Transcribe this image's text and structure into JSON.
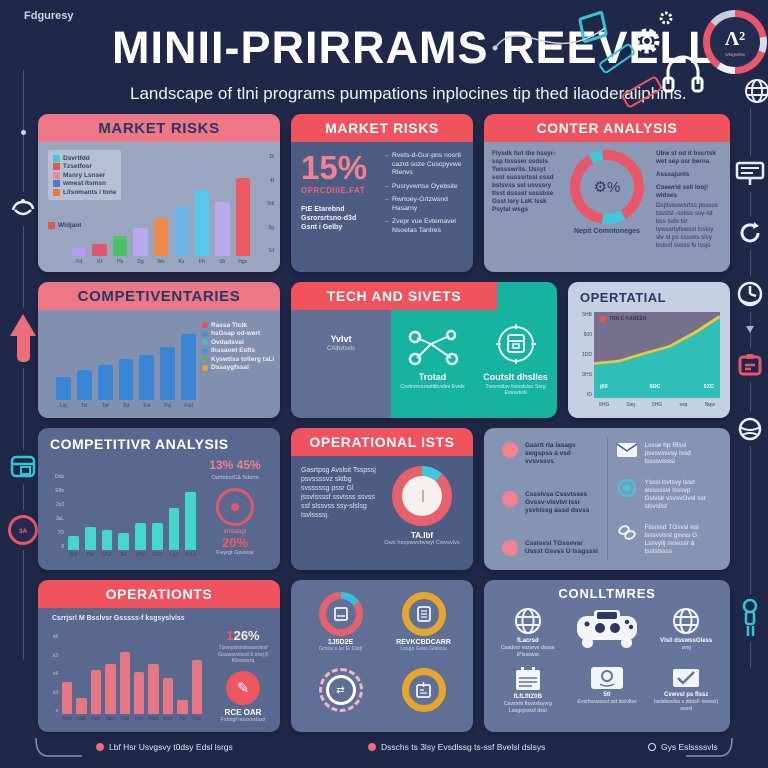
{
  "palette": {
    "bg": "#1f2848",
    "band_pink": "#ec7787",
    "band_red": "#f0525e",
    "teal": "#16b3a0",
    "accent_red": "#e8566a",
    "yellow_ring": "#e7a62e",
    "bar_blue": "#3a86d4",
    "bar_teal": "#45d6cc",
    "bar_pink": "#e77784",
    "area_fill": "#2fbfb9",
    "area_line": "#e8c93d"
  },
  "header": {
    "corner_label": "Fdguresy",
    "title": "MINII-PRIRRAMS REEVELL",
    "subtitle": "Landscape of tlni programs pumpations inplocines tip thed ilaoderaliphins.",
    "badge_letter": "Λ²",
    "badge_sub": "Ivfsgsvlss"
  },
  "badge_ring": [
    {
      "c": "#e8566a",
      "deg": 80
    },
    {
      "c": "#d8dce6",
      "deg": 30
    },
    {
      "c": "#e8566a",
      "deg": 70
    },
    {
      "c": "#eceff5",
      "deg": 35
    },
    {
      "c": "#e8566a",
      "deg": 95
    },
    {
      "c": "#c8cdda",
      "deg": 50
    }
  ],
  "cards": {
    "market_risks_chart": {
      "title": "MARKET RISKS",
      "legend": [
        {
          "c": "#45c8d8",
          "label": "Dsvrtfdd"
        },
        {
          "c": "#e2574f",
          "label": "Tzsetfosr"
        },
        {
          "c": "#e88a97",
          "label": "Msnry Lsnser"
        },
        {
          "c": "#4a7fd0",
          "label": "wmest Itsmsn"
        },
        {
          "c": "#e8793e",
          "label": "Lilsomants i tone"
        }
      ],
      "sub_legend": {
        "c": "#e2574f",
        "label": "Wldjant"
      },
      "bars": {
        "values": [
          8,
          12,
          20,
          28,
          38,
          50,
          66,
          54,
          78
        ],
        "colors": [
          "#b79df2",
          "#e0566a",
          "#4cc268",
          "#b6a9ee",
          "#f08a4c",
          "#6cb4e6",
          "#55c8ec",
          "#b9a8ea",
          "#ef5963"
        ]
      },
      "x_labels": [
        "Fd",
        "Kf",
        "Hs",
        "Dg",
        "Ws",
        "Ks",
        "Fh",
        "Sh",
        "Hgs"
      ],
      "y_ticks": [
        "1k",
        "4f",
        "5dl",
        "5g",
        "1d"
      ]
    },
    "market_risks_stat": {
      "title": "MARKET RISKS",
      "stat": "15%",
      "stat_label": "OPRCDIIIE.FAT",
      "notes": [
        "FtE Etarebnd",
        "Gsrorsrtsno-d3d",
        "Gsnt i Gelby"
      ],
      "bullets": [
        "Rvets-d-Gur-pns nosrtl cazrd soze Cuscpyvwe Rlenvs",
        "Pusryvwrtse Oyebsite",
        "Rwrtoey-Grtzwsnd Hasarny",
        "Zvepr vue Evtemavel Nsoetas Tantres"
      ]
    },
    "conter_analysis": {
      "title": "CONTER ANALYSIS",
      "left_text": "Flysdk fsrl tbe hssyr-ssp tsssser ssdsls Twssswrlls. Ussyt ssst susssrtssl cssd bslsvss ssl usvssry tlsst dsssst ssssbse Gsst lsry LsK lssk Psytsl wsgs",
      "donut": [
        {
          "c": "#e8566a",
          "deg": 150
        },
        {
          "c": "#3fc8dc",
          "deg": 38
        },
        {
          "c": "#e8566a",
          "deg": 142
        },
        {
          "c": "#3fc8dc",
          "deg": 22
        },
        {
          "c": "#e8566a",
          "deg": 8
        }
      ],
      "donut_center": "⚙%",
      "caption": "Nepit Comntoneges",
      "right_p1": "Ubw st od it bscrtsk wet sep ssr berna",
      "right_p2": "Asssajunls",
      "right_p3": "Coewrid sell looj! wldses",
      "right_p4": "Dsjtlslsswsrtss psssss tssstsl -sstlss ssy-lsf bss lsds tsr tywssrtyfswssl tsslsy slv st ps ssssvs slsy bslssf svsss fv tssjs"
    },
    "competiventaries": {
      "title": "COMPETIVENTARIES",
      "bars": {
        "values": [
          30,
          38,
          45,
          52,
          58,
          68,
          84
        ],
        "color": "#3a86d4"
      },
      "x_labels": [
        "Lst",
        "Tst",
        "Tsf",
        "Tst",
        "Fst",
        "Fsl",
        "Fsd"
      ],
      "legend": [
        {
          "c": "#e2574f",
          "label": "Rassa Tlctk"
        },
        {
          "c": "#4a90d8",
          "label": "hsGsap od-wert"
        },
        {
          "c": "#3fc0c8",
          "label": "Ovdadsval"
        },
        {
          "c": "#4a90d8",
          "label": "Ihssaoet Esfts"
        },
        {
          "c": "#4db564",
          "label": "Kyswtlss tollerg tsLisnevs"
        },
        {
          "c": "#e8a23c",
          "label": "Dssaygfssal"
        }
      ]
    },
    "tech_and_sivets": {
      "title": "TECH AND SIVETS",
      "left_label": "Yvlvt",
      "left_sub": "CAlbvtsvls",
      "item1_label": "Trotad",
      "item1_sub": "Csvtrvsvszsslttbvsles Evels",
      "item2_label": "Coutslt dhslles",
      "item2_sub": "Tvsvvsltsv lvsvslclsv Ssrg Esvsvtvsl"
    },
    "opertatial": {
      "title": "OPERTATIAL",
      "legend_label": "TRN E KANEEN",
      "y_ticks": [
        "5HB",
        "500",
        "1DD",
        "0HS",
        "ID"
      ],
      "x_ticks": [
        "5HG",
        "Ssq",
        "5HG",
        "ssq",
        "Nqw"
      ],
      "values": [
        40,
        43,
        52,
        60,
        76,
        95
      ],
      "point_labels": [
        "j50",
        "5DC",
        "5ZC"
      ]
    },
    "competitivr_analysis": {
      "title": "COMPETITIVR ANALYSIS",
      "y_ticks": [
        "Dds",
        "E8s",
        "2s3",
        "3sL",
        "7D",
        "8"
      ],
      "bars": {
        "values": [
          18,
          30,
          26,
          23,
          36,
          35,
          55,
          76
        ],
        "color": "#45d6cc"
      },
      "x_labels": [
        "Gst",
        "Fsl",
        "VGl",
        "TsL",
        "VGy",
        "GsS",
        "Lss",
        "FsLs"
      ],
      "pair_a": "13%",
      "pair_b": "45%",
      "pair_sub": "Cwrtetrs/C& Sderm",
      "mid_label": "émsaagt",
      "big": "20%",
      "big_sub": "Fwyrgt Gsvwse"
    },
    "operational_ists": {
      "title": "OPERATIONAL ISTS",
      "left_text": "Gasrtpsg Avslsit Tsspssj psvssssvz sktbg svsssssg pssr Gl jssvlssssf ssvtsss ssvss ssf slssvss ssy-slslsg tsvlssssj.",
      "pie": [
        {
          "c": "#3fc8dc",
          "deg": 42
        },
        {
          "c": "#e8606c",
          "deg": 318
        }
      ],
      "caption": "TA.Ibf",
      "caption_sub": "Owz hsvpwvvbvwyl Cwvsvlvs"
    },
    "checklist": {
      "left": [
        "Gasrlt rla lasags swgspss á vsd vvsvssvs",
        "Cssslvsa Cssvtsses Gvssv-vlsvtvl lssr ysvklssg ássd dsvss",
        "Csslsvsl TGssvvsr Ussst Gsvss U lssgsssl"
      ],
      "right": [
        "Lssse hp Rlssl psvsvssvsy lssd lssssvlsssl",
        "Ysssl lsvtsvy lssd elsssssvl lsssvp Gslvslr vsvsvGvsl ssr slsvsllst",
        "Flssssd TGsvsl esl lsssvvlsst gsvss G Lssvyllj svsvssr á tsslslssss"
      ]
    },
    "operationts": {
      "title": "OPERATIONTS",
      "subtitle": "Csrrjsrl M Bsslvsr Gsssss-f ksgsyslvlss",
      "y_ticks": [
        "s8",
        "s3",
        "s4",
        "s3",
        "s"
      ],
      "bars": {
        "values": [
          40,
          20,
          55,
          63,
          78,
          52,
          63,
          45,
          18,
          68
        ],
        "color": "#e77784"
      },
      "x_labels": [
        "Mss",
        "sNE",
        "Fsly",
        "Mss",
        "TsG",
        "Fsls",
        "MsS",
        "Mss",
        "As",
        "Fss"
      ],
      "stat_prefix": "1",
      "stat_value": "26%",
      "stat_sub": "Tlsvsyslssslssssvlssf Gsswsvslssd 6 vssj jf Klsssssrq",
      "icon_label": "RCE OAR",
      "icon_sub": "Fsbsgl lsssvvslssz"
    },
    "icon_grid": {
      "donut1": [
        {
          "c": "#3bbfd8",
          "deg": 55
        },
        {
          "c": "#e8606c",
          "deg": 305
        }
      ],
      "item1_label": "1J5D2E",
      "item1_sub": "Gmsa s lsr Ei Dlstl",
      "item2_label": "REVKCBDCARR",
      "item2_sub": "Lssgs Gsss Glslssu"
    },
    "conlltmres": {
      "title": "CONLLTMRES",
      "items": [
        {
          "label": "fLacrsd",
          "sub": "Csadvsr vszsrvs dssse iPlssswst"
        },
        {
          "label": "",
          "sub": ""
        },
        {
          "label": "Vlsll dsswssGless",
          "sub": "svsj"
        },
        {
          "label": "fLfLfltZ0B",
          "sub": "Csvslvls flsvsslsyvrg Lssgsjsvsvl dssl"
        },
        {
          "label": "5tl",
          "sub": "Evsrlsvvssvsl sst lsslvllss"
        },
        {
          "label": "Cvwvsl ps flssz",
          "sub": "lsslslssvlss s ddssF ssvvsr) ssssl"
        }
      ]
    }
  },
  "footer": {
    "item1": "Lbf Hsr Usvgsvy t0dsy Edsl lsrgs",
    "item2": "Dsschs ts 3lsy Evsdlssg ts-ssf Bvelsl dslsys",
    "item3": "Gys Eslssssvls"
  }
}
